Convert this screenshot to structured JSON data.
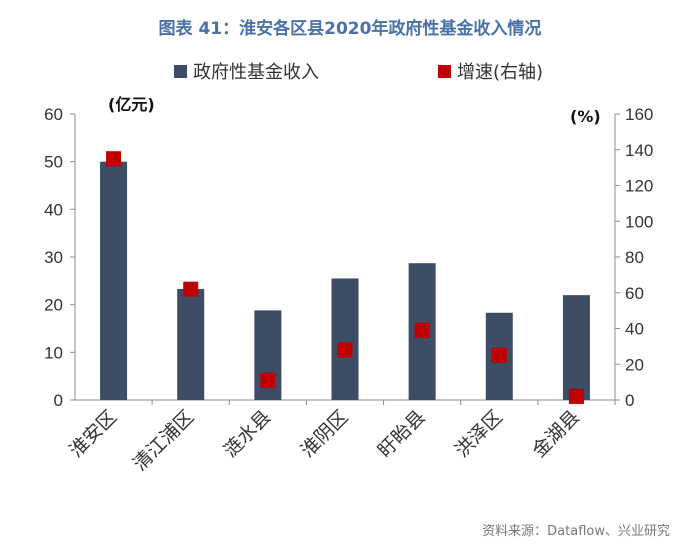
{
  "title": "图表 41：淮安各区县2020年政府性基金收入情况",
  "source": "资料来源：Dataflow、兴业研究",
  "chart_data": {
    "type": "bar",
    "categories": [
      "淮安区",
      "清江浦区",
      "涟水县",
      "淮阴区",
      "盱眙县",
      "洪泽区",
      "金湖县"
    ],
    "series": [
      {
        "name": "政府性基金收入",
        "type": "bar",
        "axis": "left",
        "color": "#3d4d66",
        "values": [
          50,
          23.3,
          18.8,
          25.5,
          28.7,
          18.3,
          22
        ]
      },
      {
        "name": "增速(右轴)",
        "type": "scatter",
        "axis": "right",
        "color": "#c00000",
        "values": [
          135,
          62,
          11,
          28,
          39,
          25,
          2
        ]
      }
    ],
    "left_axis": {
      "unit": "(亿元)",
      "ylim": [
        0,
        60
      ],
      "ticks": [
        0,
        10,
        20,
        30,
        40,
        50,
        60
      ]
    },
    "right_axis": {
      "unit": "(%)",
      "ylim": [
        0,
        160
      ],
      "ticks": [
        0,
        20,
        40,
        60,
        80,
        100,
        120,
        140,
        160
      ]
    },
    "legend": "top",
    "grid": false
  }
}
